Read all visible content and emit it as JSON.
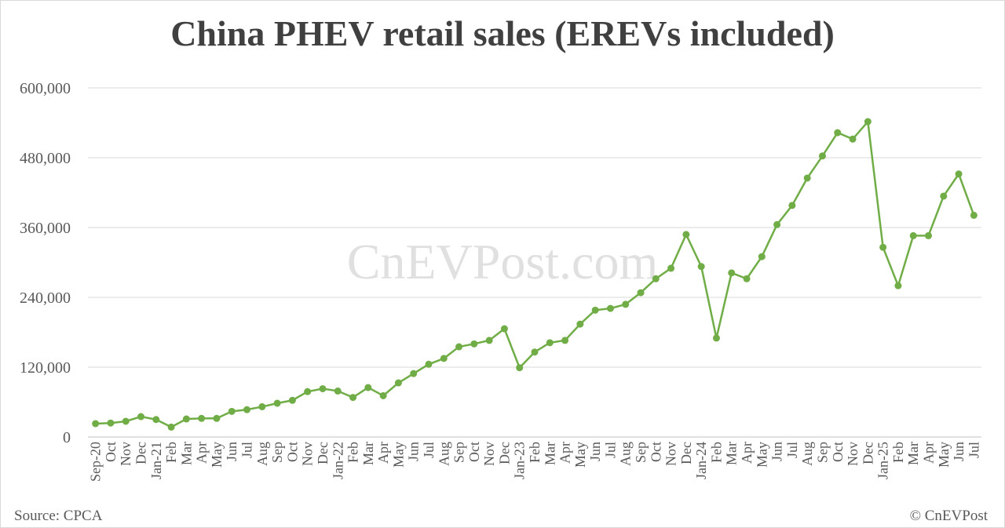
{
  "chart_data": {
    "type": "line",
    "title": "China PHEV retail sales (EREVs included)",
    "watermark": "CnEVPost.com",
    "source": "Source: CPCA",
    "credit": "© CnEVPost",
    "categories": [
      "Sep-20",
      "Oct",
      "Nov",
      "Dec",
      "Jan-21",
      "Feb",
      "Mar",
      "Apr",
      "May",
      "Jun",
      "Jul",
      "Aug",
      "Sep",
      "Oct",
      "Nov",
      "Dec",
      "Jan-22",
      "Feb",
      "Mar",
      "Apr",
      "May",
      "Jun",
      "Jul",
      "Aug",
      "Sep",
      "Oct",
      "Nov",
      "Dec",
      "Jan-23",
      "Feb",
      "Mar",
      "Apr",
      "May",
      "Jun",
      "Jul",
      "Aug",
      "Sep",
      "Oct",
      "Nov",
      "Dec",
      "Jan-24",
      "Feb",
      "Mar",
      "Apr",
      "May",
      "Jun",
      "Jul",
      "Aug",
      "Sep",
      "Oct",
      "Nov",
      "Dec",
      "Jan-25",
      "Feb",
      "Mar",
      "Apr",
      "May",
      "Jun",
      "Jul"
    ],
    "values": [
      23000,
      24000,
      27000,
      35000,
      30000,
      17000,
      31000,
      32000,
      32000,
      44000,
      47000,
      52000,
      58000,
      63000,
      78000,
      83000,
      79000,
      68000,
      85000,
      71000,
      93000,
      109000,
      125000,
      135000,
      155000,
      160000,
      166000,
      186000,
      119000,
      146000,
      162000,
      166000,
      194000,
      218000,
      221000,
      228000,
      248000,
      272000,
      290000,
      348000,
      293000,
      170000,
      282000,
      272000,
      310000,
      365000,
      398000,
      445000,
      483000,
      523000,
      512000,
      542000,
      326000,
      260000,
      346000,
      346000,
      414000,
      452000,
      381000
    ],
    "color": "#70ad47",
    "ylim": [
      0,
      600000
    ],
    "yticks": [
      0,
      {
        "value": 120000,
        "label": "120,000"
      },
      {
        "value": 240000,
        "label": "240,000"
      },
      {
        "value": 360000,
        "label": "360,000"
      },
      {
        "value": 480000,
        "label": "480,000"
      },
      {
        "value": 600000,
        "label": "600,000"
      }
    ],
    "grid": true
  }
}
